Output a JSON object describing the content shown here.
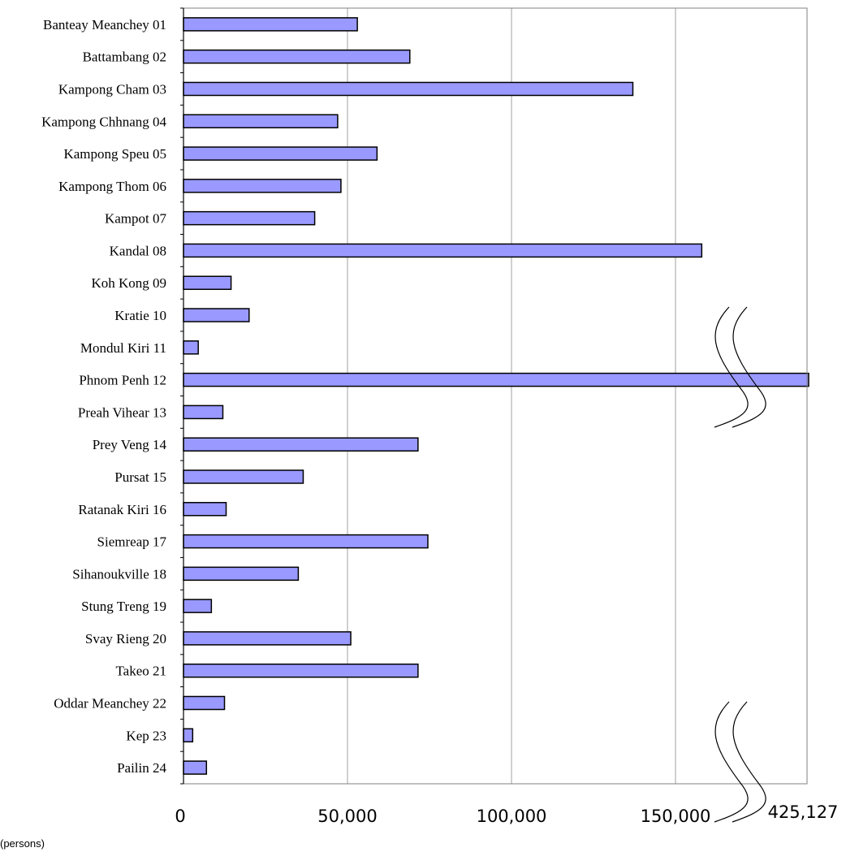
{
  "chart_data": {
    "type": "bar",
    "orientation": "horizontal",
    "axis_break": true,
    "categories": [
      "Banteay Meanchey 01",
      "Battambang 02",
      "Kampong Cham 03",
      "Kampong Chhnang 04",
      "Kampong Speu 05",
      "Kampong Thom 06",
      "Kampot 07",
      "Kandal 08",
      "Koh Kong 09",
      "Kratie 10",
      "Mondul Kiri 11",
      "Phnom Penh 12",
      "Preah Vihear 13",
      "Prey Veng 14",
      "Pursat 15",
      "Ratanak Kiri 16",
      "Siemreap 17",
      "Sihanoukville 18",
      "Stung Treng 19",
      "Svay Rieng 20",
      "Takeo 21",
      "Oddar Meanchey 22",
      "Kep 23",
      "Pailin 24"
    ],
    "values": [
      53000,
      69000,
      137000,
      47000,
      59000,
      48000,
      40000,
      158000,
      14500,
      20000,
      4500,
      425127,
      12000,
      71500,
      36500,
      13000,
      74500,
      35000,
      8500,
      51000,
      71500,
      12500,
      2800,
      7000
    ],
    "x_ticks": [
      "0",
      "50,000",
      "100,000",
      "150,000"
    ],
    "x_break_label": "425,127",
    "xlim": [
      0,
      190000
    ],
    "unit_label": "(persons)",
    "grid": true,
    "colors": {
      "bar_fill": "#9999ff",
      "bar_stroke": "#000000",
      "grid": "#a0a0a0"
    }
  }
}
